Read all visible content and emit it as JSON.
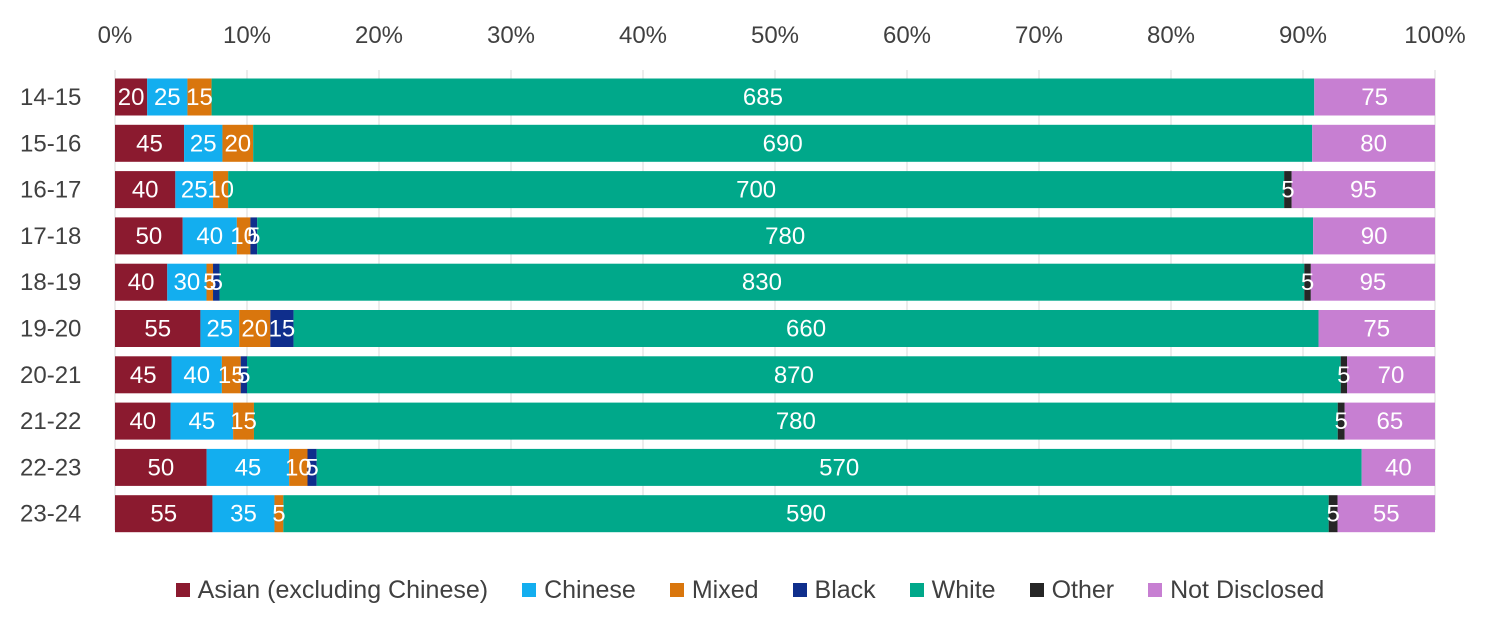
{
  "chart_data": {
    "type": "bar",
    "orientation": "horizontal",
    "stacked": "percent",
    "categories": [
      "14-15",
      "15-16",
      "16-17",
      "17-18",
      "18-19",
      "19-20",
      "20-21",
      "21-22",
      "22-23",
      "23-24"
    ],
    "x_ticks": [
      "0%",
      "10%",
      "20%",
      "30%",
      "40%",
      "50%",
      "60%",
      "70%",
      "80%",
      "90%",
      "100%"
    ],
    "xlim": [
      0,
      100
    ],
    "grid": true,
    "legend_position": "bottom",
    "series": [
      {
        "name": "Asian (excluding Chinese)",
        "color": "#8B1A2F",
        "values": [
          20,
          45,
          40,
          50,
          40,
          55,
          45,
          40,
          50,
          55
        ]
      },
      {
        "name": "Chinese",
        "color": "#13AEEF",
        "values": [
          25,
          25,
          25,
          40,
          30,
          25,
          40,
          45,
          45,
          35
        ]
      },
      {
        "name": "Mixed",
        "color": "#D9760D",
        "values": [
          15,
          20,
          10,
          10,
          5,
          20,
          15,
          15,
          10,
          5
        ]
      },
      {
        "name": "Black",
        "color": "#0F2E8C",
        "values": [
          0,
          0,
          0,
          5,
          5,
          15,
          5,
          0,
          5,
          0
        ]
      },
      {
        "name": "White",
        "color": "#00A88A",
        "values": [
          685,
          690,
          700,
          780,
          830,
          660,
          870,
          780,
          570,
          590
        ]
      },
      {
        "name": "Other",
        "color": "#262626",
        "values": [
          0,
          0,
          5,
          0,
          5,
          0,
          5,
          5,
          0,
          5
        ]
      },
      {
        "name": "Not Disclosed",
        "color": "#C77FD2",
        "values": [
          75,
          80,
          95,
          90,
          95,
          75,
          70,
          65,
          40,
          55
        ]
      }
    ]
  }
}
